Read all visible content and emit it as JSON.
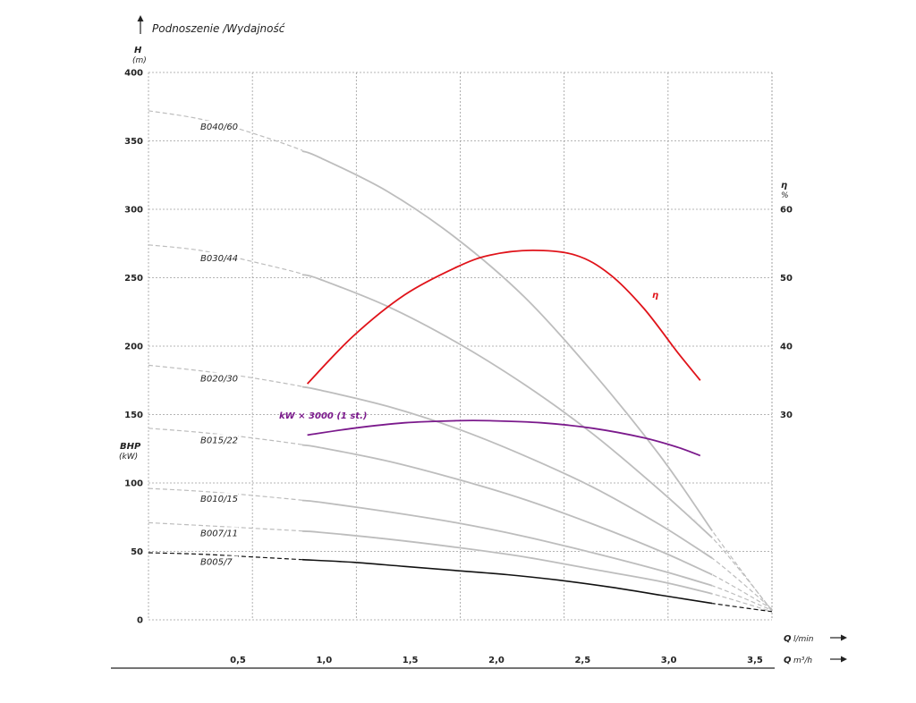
{
  "chart_data": {
    "type": "line",
    "title": "Podnoszenie /Wydajność",
    "ylabel": "H",
    "ylabel_unit": "(m)",
    "ylim": [
      0,
      400
    ],
    "yticks": [
      "0",
      "50",
      "100",
      "150",
      "200",
      "250",
      "300",
      "350",
      "400"
    ],
    "y2label": "η",
    "y2label_unit": "%",
    "y2ticks": [
      "30",
      "40",
      "50",
      "60"
    ],
    "y2ticks_values": [
      30,
      40,
      50,
      60
    ],
    "bhp_label": "BHP",
    "bhp_unit": "(kW)",
    "xlabel_q": "Q",
    "xlabel_lmin_unit": "l/min",
    "xlabel_m3h_unit": "m³/h",
    "xlim": [
      0,
      3.65
    ],
    "xticks": [
      "0,5",
      "1,0",
      "1,5",
      "2,0",
      "2,5",
      "3,0",
      "3,5"
    ],
    "xticks_values": [
      0.5,
      1.0,
      1.5,
      2.0,
      2.5,
      3.0,
      3.5
    ],
    "grid": true,
    "series": [
      {
        "name": "B040/60",
        "color": "#bdbdbd",
        "x": [
          0,
          0.3,
          0.6,
          1.0,
          1.4,
          1.8,
          2.2,
          2.6,
          3.0,
          3.3,
          3.65
        ],
        "y": [
          372,
          366,
          356,
          338,
          313,
          279,
          236,
          181,
          119,
          65,
          6
        ]
      },
      {
        "name": "B030/44",
        "color": "#bdbdbd",
        "x": [
          0,
          0.3,
          0.6,
          1.0,
          1.4,
          1.8,
          2.2,
          2.6,
          3.0,
          3.3,
          3.65
        ],
        "y": [
          274,
          270,
          262,
          249,
          229,
          203,
          172,
          136,
          94,
          60,
          7
        ]
      },
      {
        "name": "B020/30",
        "color": "#bdbdbd",
        "x": [
          0,
          0.3,
          0.6,
          1.0,
          1.4,
          1.8,
          2.2,
          2.6,
          3.0,
          3.3,
          3.65
        ],
        "y": [
          186,
          182,
          177,
          168,
          156,
          140,
          120,
          97,
          69,
          45,
          8
        ]
      },
      {
        "name": "B015/22",
        "color": "#bdbdbd",
        "x": [
          0,
          0.3,
          0.6,
          1.0,
          1.4,
          1.8,
          2.2,
          2.6,
          3.0,
          3.3,
          3.65
        ],
        "y": [
          140,
          137,
          133,
          126,
          116,
          103,
          88,
          70,
          50,
          33,
          8
        ]
      },
      {
        "name": "B010/15",
        "color": "#bdbdbd",
        "x": [
          0,
          0.3,
          0.6,
          1.0,
          1.4,
          1.8,
          2.2,
          2.6,
          3.0,
          3.3,
          3.65
        ],
        "y": [
          96,
          94,
          91,
          86,
          79,
          71,
          61,
          49,
          36,
          25,
          7
        ]
      },
      {
        "name": "B007/11",
        "color": "#bdbdbd",
        "x": [
          0,
          0.3,
          0.6,
          1.0,
          1.4,
          1.8,
          2.2,
          2.6,
          3.0,
          3.3,
          3.65
        ],
        "y": [
          71,
          69,
          67,
          64,
          59,
          53,
          46,
          37,
          28,
          19,
          6
        ]
      },
      {
        "name": "B005/7",
        "color": "#111111",
        "x": [
          0,
          0.3,
          0.6,
          0.9,
          1.2,
          1.5,
          1.8,
          2.1,
          2.4,
          2.7,
          3.0,
          3.3,
          3.65
        ],
        "y": [
          49,
          48,
          46,
          44,
          42,
          39,
          36,
          33,
          29,
          24,
          18,
          12,
          6
        ]
      },
      {
        "name": "η",
        "axis": "eta",
        "color": "#e0131a",
        "x": [
          0.93,
          1.2,
          1.5,
          1.8,
          2.0,
          2.25,
          2.5,
          2.7,
          2.9,
          3.1,
          3.23
        ],
        "y": [
          34.5,
          41.5,
          47.5,
          51.5,
          53.3,
          54.0,
          53.3,
          50.5,
          45.5,
          39.0,
          35.0
        ]
      },
      {
        "name": "kW × 3000 (1 st.)",
        "axis": "H",
        "color": "#7b1a8c",
        "x": [
          0.93,
          1.2,
          1.5,
          1.8,
          2.0,
          2.3,
          2.6,
          2.9,
          3.1,
          3.23
        ],
        "y": [
          135,
          140,
          144,
          145.5,
          145.5,
          144,
          140,
          133,
          126,
          120
        ]
      }
    ]
  }
}
